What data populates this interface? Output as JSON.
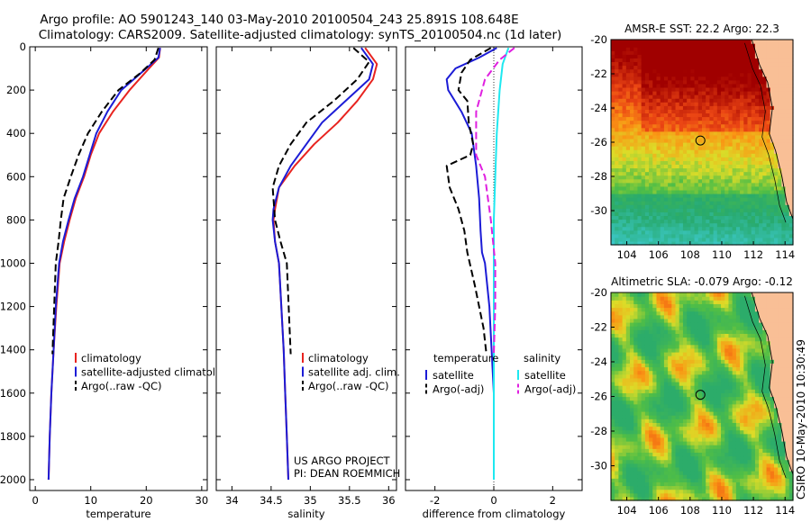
{
  "header": {
    "line1": "Argo profile: AO 5901243_140 03-May-2010 20100504_243 25.891S 108.648E",
    "line2": "Climatology: CARS2009. Satellite-adjusted climatology: synTS_20100504.nc (1d later)"
  },
  "side_text": "CSIRO 10-May-2010 10:30:49",
  "colors": {
    "red": "#e8231f",
    "blue": "#1c1cd6",
    "black": "#000000",
    "cyan": "#1ee8f0",
    "magenta": "#e020e0"
  },
  "chart_data": [
    {
      "type": "line",
      "xlabel": "temperature",
      "xlim": [
        -1,
        31
      ],
      "ylim": [
        0,
        2050
      ],
      "y_inverted": true,
      "xticks": [
        0,
        10,
        20,
        30
      ],
      "yticks": [
        0,
        200,
        400,
        600,
        800,
        1000,
        1200,
        1400,
        1600,
        1800,
        2000
      ],
      "legend": [
        "climatology",
        "satellite-adjusted climatology",
        "Argo(..raw -QC)"
      ],
      "series": [
        {
          "name": "climatology",
          "color": "red",
          "dash": "solid",
          "x": [
            22.5,
            22.3,
            20.5,
            17,
            14,
            11.5,
            10,
            8.8,
            7.3,
            6.2,
            5.2,
            4.4,
            3.8,
            3.3,
            2.9,
            2.6,
            2.4
          ],
          "y": [
            5,
            50,
            100,
            200,
            300,
            400,
            500,
            600,
            700,
            800,
            900,
            1000,
            1200,
            1400,
            1600,
            1800,
            2000
          ]
        },
        {
          "name": "satellite-adjusted climatology",
          "color": "blue",
          "dash": "solid",
          "x": [
            22.5,
            22.2,
            20,
            15.5,
            13,
            11,
            9.8,
            8.6,
            7.1,
            6,
            5,
            4.3,
            3.7,
            3.3,
            2.9,
            2.6,
            2.4
          ],
          "y": [
            5,
            50,
            100,
            200,
            300,
            400,
            500,
            600,
            700,
            800,
            900,
            1000,
            1200,
            1400,
            1600,
            1800,
            2000
          ]
        },
        {
          "name": "Argo(..raw -QC)",
          "color": "black",
          "dash": "dash",
          "x": [
            22.2,
            21.5,
            19,
            15,
            12,
            9.5,
            7.8,
            6.4,
            5.1,
            4.6,
            4.2,
            3.7,
            3.1
          ],
          "y": [
            5,
            60,
            120,
            200,
            300,
            400,
            500,
            600,
            700,
            800,
            900,
            1000,
            1420
          ]
        }
      ]
    },
    {
      "type": "line",
      "xlabel": "salinity",
      "xlim": [
        33.8,
        36.1
      ],
      "ylim": [
        0,
        2050
      ],
      "y_inverted": true,
      "xticks": [
        34,
        34.5,
        35,
        35.5,
        36
      ],
      "legend": [
        "climatology",
        "satellite adj. clim.",
        "Argo(..raw -QC)"
      ],
      "annotations": [
        "US ARGO PROJECT",
        "PI: DEAN ROEMMICH"
      ],
      "series": [
        {
          "name": "climatology",
          "color": "red",
          "dash": "solid",
          "x": [
            35.7,
            35.85,
            35.8,
            35.6,
            35.35,
            35.05,
            34.8,
            34.6,
            34.55,
            34.53,
            34.55,
            34.6,
            34.63,
            34.66,
            34.68,
            34.7,
            34.72
          ],
          "y": [
            5,
            80,
            150,
            250,
            350,
            450,
            550,
            650,
            750,
            800,
            900,
            1000,
            1200,
            1400,
            1600,
            1800,
            2000
          ]
        },
        {
          "name": "satellite adj. clim.",
          "color": "blue",
          "dash": "solid",
          "x": [
            35.65,
            35.8,
            35.75,
            35.45,
            35.15,
            34.95,
            34.75,
            34.6,
            34.53,
            34.52,
            34.55,
            34.6,
            34.63,
            34.66,
            34.68,
            34.7,
            34.72
          ],
          "y": [
            5,
            80,
            150,
            250,
            350,
            450,
            550,
            650,
            750,
            800,
            900,
            1000,
            1200,
            1400,
            1600,
            1800,
            2000
          ]
        },
        {
          "name": "Argo(..raw -QC)",
          "color": "black",
          "dash": "dash",
          "x": [
            35.55,
            35.75,
            35.6,
            35.3,
            34.95,
            34.75,
            34.6,
            34.52,
            34.55,
            34.62,
            34.7,
            34.75
          ],
          "y": [
            5,
            70,
            150,
            250,
            350,
            450,
            550,
            650,
            800,
            900,
            1000,
            1420
          ]
        }
      ]
    },
    {
      "type": "line",
      "xlabel": "difference from climatology",
      "xlim": [
        -3,
        3
      ],
      "ylim": [
        0,
        2050
      ],
      "y_inverted": true,
      "xticks": [
        -2,
        0,
        2
      ],
      "zero_line": "dotted",
      "legend_groups": [
        {
          "title": "temperature",
          "items": [
            "satellite",
            "Argo(-adj)"
          ]
        },
        {
          "title": "salinity",
          "items": [
            "satellite",
            "Argo(-adj)"
          ]
        }
      ],
      "series": [
        {
          "name": "temperature satellite",
          "color": "blue",
          "dash": "solid",
          "x": [
            0.1,
            -0.5,
            -1.3,
            -1.6,
            -1.55,
            -1.1,
            -0.75,
            -0.6,
            -0.5,
            -0.45,
            -0.4,
            -0.3,
            -0.15,
            0,
            0
          ],
          "y": [
            5,
            50,
            100,
            150,
            200,
            300,
            400,
            550,
            700,
            850,
            950,
            1000,
            1200,
            1600,
            2000
          ]
        },
        {
          "name": "temperature Argo(-adj)",
          "color": "black",
          "dash": "dash",
          "x": [
            -0.1,
            -0.8,
            -1.1,
            -1.2,
            -0.9,
            -0.85,
            -0.7,
            -0.8,
            -1.6,
            -1.5,
            -1.2,
            -1.0,
            -0.9,
            -0.65,
            -0.35,
            -0.25
          ],
          "y": [
            5,
            60,
            120,
            200,
            250,
            350,
            450,
            500,
            550,
            650,
            750,
            850,
            950,
            1100,
            1300,
            1420
          ]
        },
        {
          "name": "salinity satellite",
          "color": "cyan",
          "dash": "solid",
          "x": [
            0.5,
            0.3,
            0.2,
            0.1,
            0.05,
            0,
            0,
            0,
            0,
            0
          ],
          "y": [
            5,
            80,
            200,
            400,
            600,
            800,
            1000,
            1300,
            1600,
            2000
          ]
        },
        {
          "name": "salinity Argo(-adj)",
          "color": "magenta",
          "dash": "dash",
          "x": [
            0.7,
            0.2,
            -0.3,
            -0.6,
            -0.6,
            -0.3,
            -0.1,
            0.05,
            0.05,
            0
          ],
          "y": [
            5,
            60,
            150,
            300,
            500,
            600,
            800,
            1000,
            1200,
            1420
          ]
        }
      ]
    },
    {
      "type": "heatmap",
      "title": "AMSR-E SST: 22.2 Argo: 22.3",
      "xlim": [
        103,
        114.5
      ],
      "ylim": [
        -32,
        -20
      ],
      "xticks": [
        104,
        106,
        108,
        110,
        112,
        114
      ],
      "yticks": [
        -20,
        -22,
        -24,
        -26,
        -28,
        -30
      ],
      "marker": [
        108.65,
        -25.9
      ]
    },
    {
      "type": "heatmap",
      "title": "Altimetric SLA: -0.079 Argo: -0.12",
      "xlim": [
        103,
        114.5
      ],
      "ylim": [
        -32,
        -20
      ],
      "xticks": [
        104,
        106,
        108,
        110,
        112,
        114
      ],
      "yticks": [
        -20,
        -22,
        -24,
        -26,
        -28,
        -30
      ],
      "marker": [
        108.65,
        -25.9
      ]
    }
  ]
}
